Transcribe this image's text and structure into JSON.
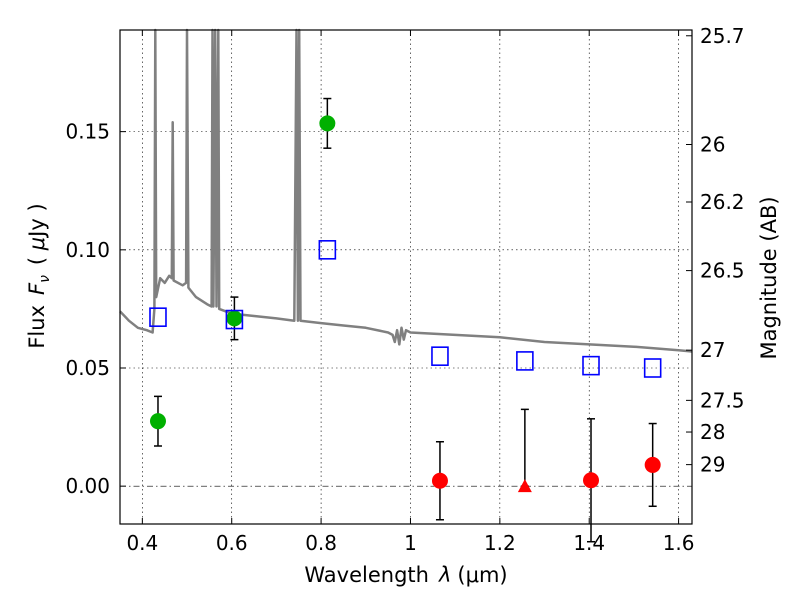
{
  "chart_data": {
    "type": "scatter",
    "xlabel": "Wavelength  λ (μm)",
    "ylabel": "Flux  F_ν  ( μJy )",
    "ylabel_parts": {
      "flux": "Flux",
      "symbol": "F",
      "subscript": "ν",
      "unit_open": "( ",
      "mu": "μ",
      "unit": "Jy )"
    },
    "xlabel_parts": {
      "word": "Wavelength",
      "symbol": "λ",
      "unit": "(μm)"
    },
    "ylabel_right": "Magnitude (AB)",
    "xlim": [
      0.35,
      1.63
    ],
    "ylim": [
      -0.016,
      0.193
    ],
    "grid": true,
    "x_ticks": [
      {
        "v": 0.4,
        "label": "0.4"
      },
      {
        "v": 0.6,
        "label": "0.6"
      },
      {
        "v": 0.8,
        "label": "0.8"
      },
      {
        "v": 1.0,
        "label": "1"
      },
      {
        "v": 1.2,
        "label": "1.2"
      },
      {
        "v": 1.4,
        "label": "1.4"
      },
      {
        "v": 1.6,
        "label": "1.6"
      }
    ],
    "y_ticks": [
      {
        "v": 0.0,
        "label": "0.00"
      },
      {
        "v": 0.05,
        "label": "0.05"
      },
      {
        "v": 0.1,
        "label": "0.10"
      },
      {
        "v": 0.15,
        "label": "0.15"
      }
    ],
    "right_ticks": [
      {
        "label": "25.7",
        "mag": 25.7
      },
      {
        "label": "26",
        "mag": 26.0
      },
      {
        "label": "26.2",
        "mag": 26.2
      },
      {
        "label": "26.5",
        "mag": 26.5
      },
      {
        "label": "27",
        "mag": 27.0
      },
      {
        "label": "27.5",
        "mag": 27.5
      },
      {
        "label": "28",
        "mag": 28.0
      },
      {
        "label": "29",
        "mag": 29.0
      }
    ],
    "colors": {
      "spectrum": "#808080",
      "green": "#00b000",
      "red": "#ff0000",
      "model": "#0000ff",
      "error": "#000000"
    },
    "series": [
      {
        "marker": "circle",
        "color": "#00b000",
        "points": [
          {
            "x": 0.435,
            "y": 0.0275,
            "err": 0.0105
          },
          {
            "x": 0.606,
            "y": 0.071,
            "err": 0.009
          },
          {
            "x": 0.814,
            "y": 0.1535,
            "err": 0.0105
          }
        ]
      },
      {
        "marker": "circle",
        "color": "#ff0000",
        "points": [
          {
            "x": 1.066,
            "y": 0.0023,
            "err": 0.0165
          },
          {
            "x": 1.404,
            "y": 0.0025,
            "err": 0.026
          },
          {
            "x": 1.542,
            "y": 0.009,
            "err": 0.0175
          }
        ]
      },
      {
        "marker": "triangle",
        "color": "#ff0000",
        "points": [
          {
            "x": 1.256,
            "y": 0.0,
            "err_lo": 0.0,
            "err_hi": 0.0325
          }
        ]
      },
      {
        "marker": "square-open",
        "color": "#0000ff",
        "points": [
          {
            "x": 0.435,
            "y": 0.0715
          },
          {
            "x": 0.606,
            "y": 0.0705
          },
          {
            "x": 0.814,
            "y": 0.1
          },
          {
            "x": 1.066,
            "y": 0.055
          },
          {
            "x": 1.256,
            "y": 0.053
          },
          {
            "x": 1.404,
            "y": 0.051
          },
          {
            "x": 1.542,
            "y": 0.05
          }
        ]
      },
      {
        "marker": "line",
        "color": "#808080",
        "points": [
          {
            "x": 0.35,
            "y": 0.074
          },
          {
            "x": 0.37,
            "y": 0.07
          },
          {
            "x": 0.39,
            "y": 0.067
          },
          {
            "x": 0.41,
            "y": 0.066
          },
          {
            "x": 0.423,
            "y": 0.065
          },
          {
            "x": 0.427,
            "y": 0.075
          },
          {
            "x": 0.429,
            "y": 0.193
          },
          {
            "x": 0.431,
            "y": 0.08
          },
          {
            "x": 0.44,
            "y": 0.088
          },
          {
            "x": 0.45,
            "y": 0.086
          },
          {
            "x": 0.46,
            "y": 0.089
          },
          {
            "x": 0.466,
            "y": 0.088
          },
          {
            "x": 0.468,
            "y": 0.154
          },
          {
            "x": 0.47,
            "y": 0.087
          },
          {
            "x": 0.49,
            "y": 0.085
          },
          {
            "x": 0.498,
            "y": 0.086
          },
          {
            "x": 0.5,
            "y": 0.193
          },
          {
            "x": 0.503,
            "y": 0.084
          },
          {
            "x": 0.52,
            "y": 0.08
          },
          {
            "x": 0.545,
            "y": 0.077
          },
          {
            "x": 0.555,
            "y": 0.076
          },
          {
            "x": 0.557,
            "y": 0.193
          },
          {
            "x": 0.559,
            "y": 0.076
          },
          {
            "x": 0.563,
            "y": 0.193
          },
          {
            "x": 0.566,
            "y": 0.076
          },
          {
            "x": 0.57,
            "y": 0.193
          },
          {
            "x": 0.572,
            "y": 0.075
          },
          {
            "x": 0.6,
            "y": 0.073
          },
          {
            "x": 0.65,
            "y": 0.072
          },
          {
            "x": 0.7,
            "y": 0.071
          },
          {
            "x": 0.74,
            "y": 0.07
          },
          {
            "x": 0.745,
            "y": 0.193
          },
          {
            "x": 0.748,
            "y": 0.07
          },
          {
            "x": 0.751,
            "y": 0.193
          },
          {
            "x": 0.754,
            "y": 0.07
          },
          {
            "x": 0.8,
            "y": 0.069
          },
          {
            "x": 0.85,
            "y": 0.068
          },
          {
            "x": 0.9,
            "y": 0.067
          },
          {
            "x": 0.95,
            "y": 0.065
          },
          {
            "x": 0.96,
            "y": 0.064
          },
          {
            "x": 0.965,
            "y": 0.061
          },
          {
            "x": 0.97,
            "y": 0.066
          },
          {
            "x": 0.975,
            "y": 0.06
          },
          {
            "x": 0.98,
            "y": 0.067
          },
          {
            "x": 0.985,
            "y": 0.062
          },
          {
            "x": 0.99,
            "y": 0.066
          },
          {
            "x": 1.0,
            "y": 0.065
          },
          {
            "x": 1.1,
            "y": 0.064
          },
          {
            "x": 1.2,
            "y": 0.063
          },
          {
            "x": 1.3,
            "y": 0.061
          },
          {
            "x": 1.4,
            "y": 0.06
          },
          {
            "x": 1.5,
            "y": 0.059
          },
          {
            "x": 1.6,
            "y": 0.0575
          },
          {
            "x": 1.63,
            "y": 0.057
          }
        ]
      }
    ]
  }
}
